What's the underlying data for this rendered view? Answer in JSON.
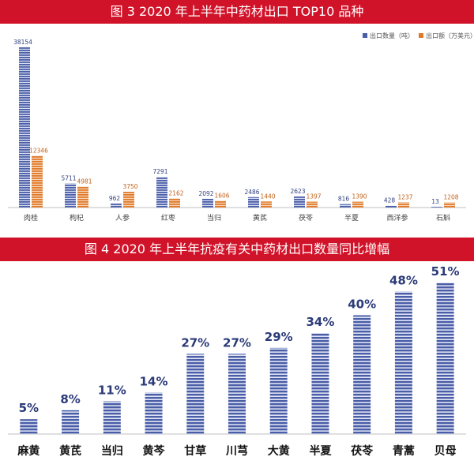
{
  "chart_data": [
    {
      "type": "bar",
      "title": "图 3    2020 年上半年中药材出口 TOP10 品种",
      "categories": [
        "肉桂",
        "枸杞",
        "人参",
        "红枣",
        "当归",
        "黄芪",
        "茯苓",
        "半夏",
        "西洋参",
        "石斛"
      ],
      "series": [
        {
          "name": "出口数量（吨）",
          "values": [
            38154,
            5711,
            962,
            7291,
            2092,
            2486,
            2623,
            816,
            428,
            13
          ],
          "color": "#4a5ea8"
        },
        {
          "name": "出口额（万美元）",
          "values": [
            12346,
            4981,
            3750,
            2162,
            1606,
            1440,
            1397,
            1390,
            1237,
            1208
          ],
          "color": "#e07a2a"
        }
      ],
      "legend": "top-right",
      "ylim": [
        0,
        40000
      ],
      "grid": false
    },
    {
      "type": "bar",
      "title": "图 4    2020 年上半年抗疫有关中药材出口数量同比增幅",
      "categories": [
        "麻黄",
        "黄芪",
        "当归",
        "黄芩",
        "甘草",
        "川芎",
        "大黄",
        "半夏",
        "茯苓",
        "青蒿",
        "贝母"
      ],
      "values": [
        5,
        8,
        11,
        14,
        27,
        27,
        29,
        34,
        40,
        48,
        51
      ],
      "labels": [
        "5%",
        "8%",
        "11%",
        "14%",
        "27%",
        "27%",
        "29%",
        "34%",
        "40%",
        "48%",
        "51%"
      ],
      "unit": "%",
      "ylim": [
        0,
        55
      ],
      "color": "#4a5ea8",
      "grid": false
    }
  ]
}
